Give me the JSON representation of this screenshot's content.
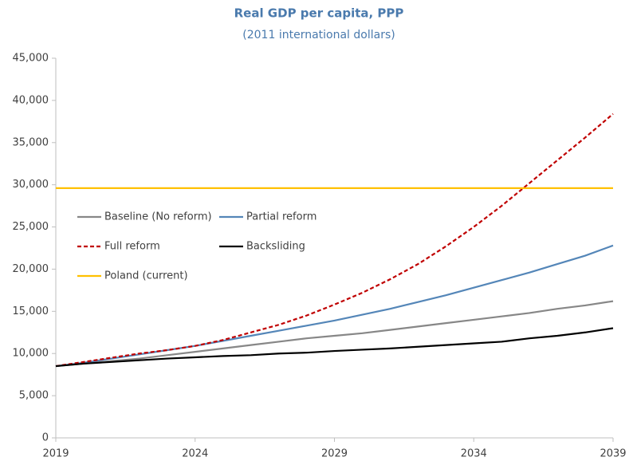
{
  "chart_data": {
    "type": "line",
    "title": "Real GDP per capita, PPP",
    "subtitle": "(2011 international dollars)",
    "x": [
      2019,
      2020,
      2021,
      2022,
      2023,
      2024,
      2025,
      2026,
      2027,
      2028,
      2029,
      2030,
      2031,
      2032,
      2033,
      2034,
      2035,
      2036,
      2037,
      2038,
      2039
    ],
    "xlim": [
      2019,
      2039
    ],
    "xticks": [
      2019,
      2024,
      2029,
      2034,
      2039
    ],
    "ylim": [
      0,
      45000
    ],
    "yticks": [
      0,
      {
        "value": 5000,
        "label": "5,000"
      },
      {
        "value": 10000,
        "label": "10,000"
      },
      {
        "value": 15000,
        "label": "15,000"
      },
      {
        "value": 20000,
        "label": "20,000"
      },
      {
        "value": 25000,
        "label": "25,000"
      },
      {
        "value": 30000,
        "label": "30,000"
      },
      {
        "value": 35000,
        "label": "35,000"
      },
      {
        "value": 40000,
        "label": "40,000"
      },
      {
        "value": 45000,
        "label": "45,000"
      }
    ],
    "series": [
      {
        "name": "Baseline (No reform)",
        "color": "#878787",
        "dash": false,
        "values": [
          8500,
          8800,
          9100,
          9400,
          9800,
          10200,
          10600,
          11000,
          11400,
          11800,
          12100,
          12400,
          12800,
          13200,
          13600,
          14000,
          14400,
          14800,
          15300,
          15700,
          16200
        ]
      },
      {
        "name": "Partial reform",
        "color": "#5486b8",
        "dash": false,
        "values": [
          8500,
          8900,
          9400,
          9900,
          10400,
          10900,
          11500,
          12100,
          12700,
          13300,
          13900,
          14600,
          15300,
          16100,
          16900,
          17800,
          18700,
          19600,
          20600,
          21600,
          22800
        ]
      },
      {
        "name": "Full reform",
        "color": "#c00000",
        "dash": true,
        "values": [
          8500,
          9000,
          9500,
          10000,
          10400,
          10900,
          11600,
          12500,
          13400,
          14500,
          15800,
          17200,
          18800,
          20600,
          22700,
          25000,
          27500,
          30200,
          32900,
          35600,
          38400
        ]
      },
      {
        "name": "Backsliding",
        "color": "#000000",
        "dash": false,
        "values": [
          8500,
          8800,
          9000,
          9200,
          9400,
          9550,
          9700,
          9800,
          10000,
          10100,
          10300,
          10450,
          10600,
          10800,
          11000,
          11200,
          11400,
          11800,
          12100,
          12500,
          13000
        ]
      },
      {
        "name": "Poland (current)",
        "color": "#ffc000",
        "dash": false,
        "values": [
          29600,
          29600,
          29600,
          29600,
          29600,
          29600,
          29600,
          29600,
          29600,
          29600,
          29600,
          29600,
          29600,
          29600,
          29600,
          29600,
          29600,
          29600,
          29600,
          29600,
          29600
        ]
      }
    ]
  }
}
